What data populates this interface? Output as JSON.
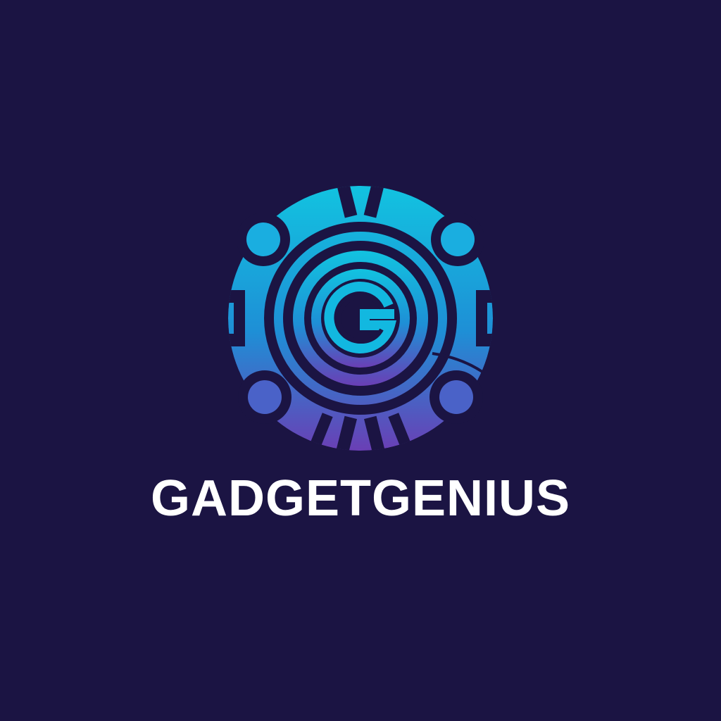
{
  "brand": {
    "name": "GADGETGENIUS",
    "mark_letter": "G",
    "mark_icon": "gear-globe-g-icon"
  },
  "colors": {
    "background": "#1b1443",
    "gradient_top": "#12c3e0",
    "gradient_mid": "#1e8fd6",
    "gradient_bottom": "#6a3fb5",
    "text": "#ffffff"
  }
}
